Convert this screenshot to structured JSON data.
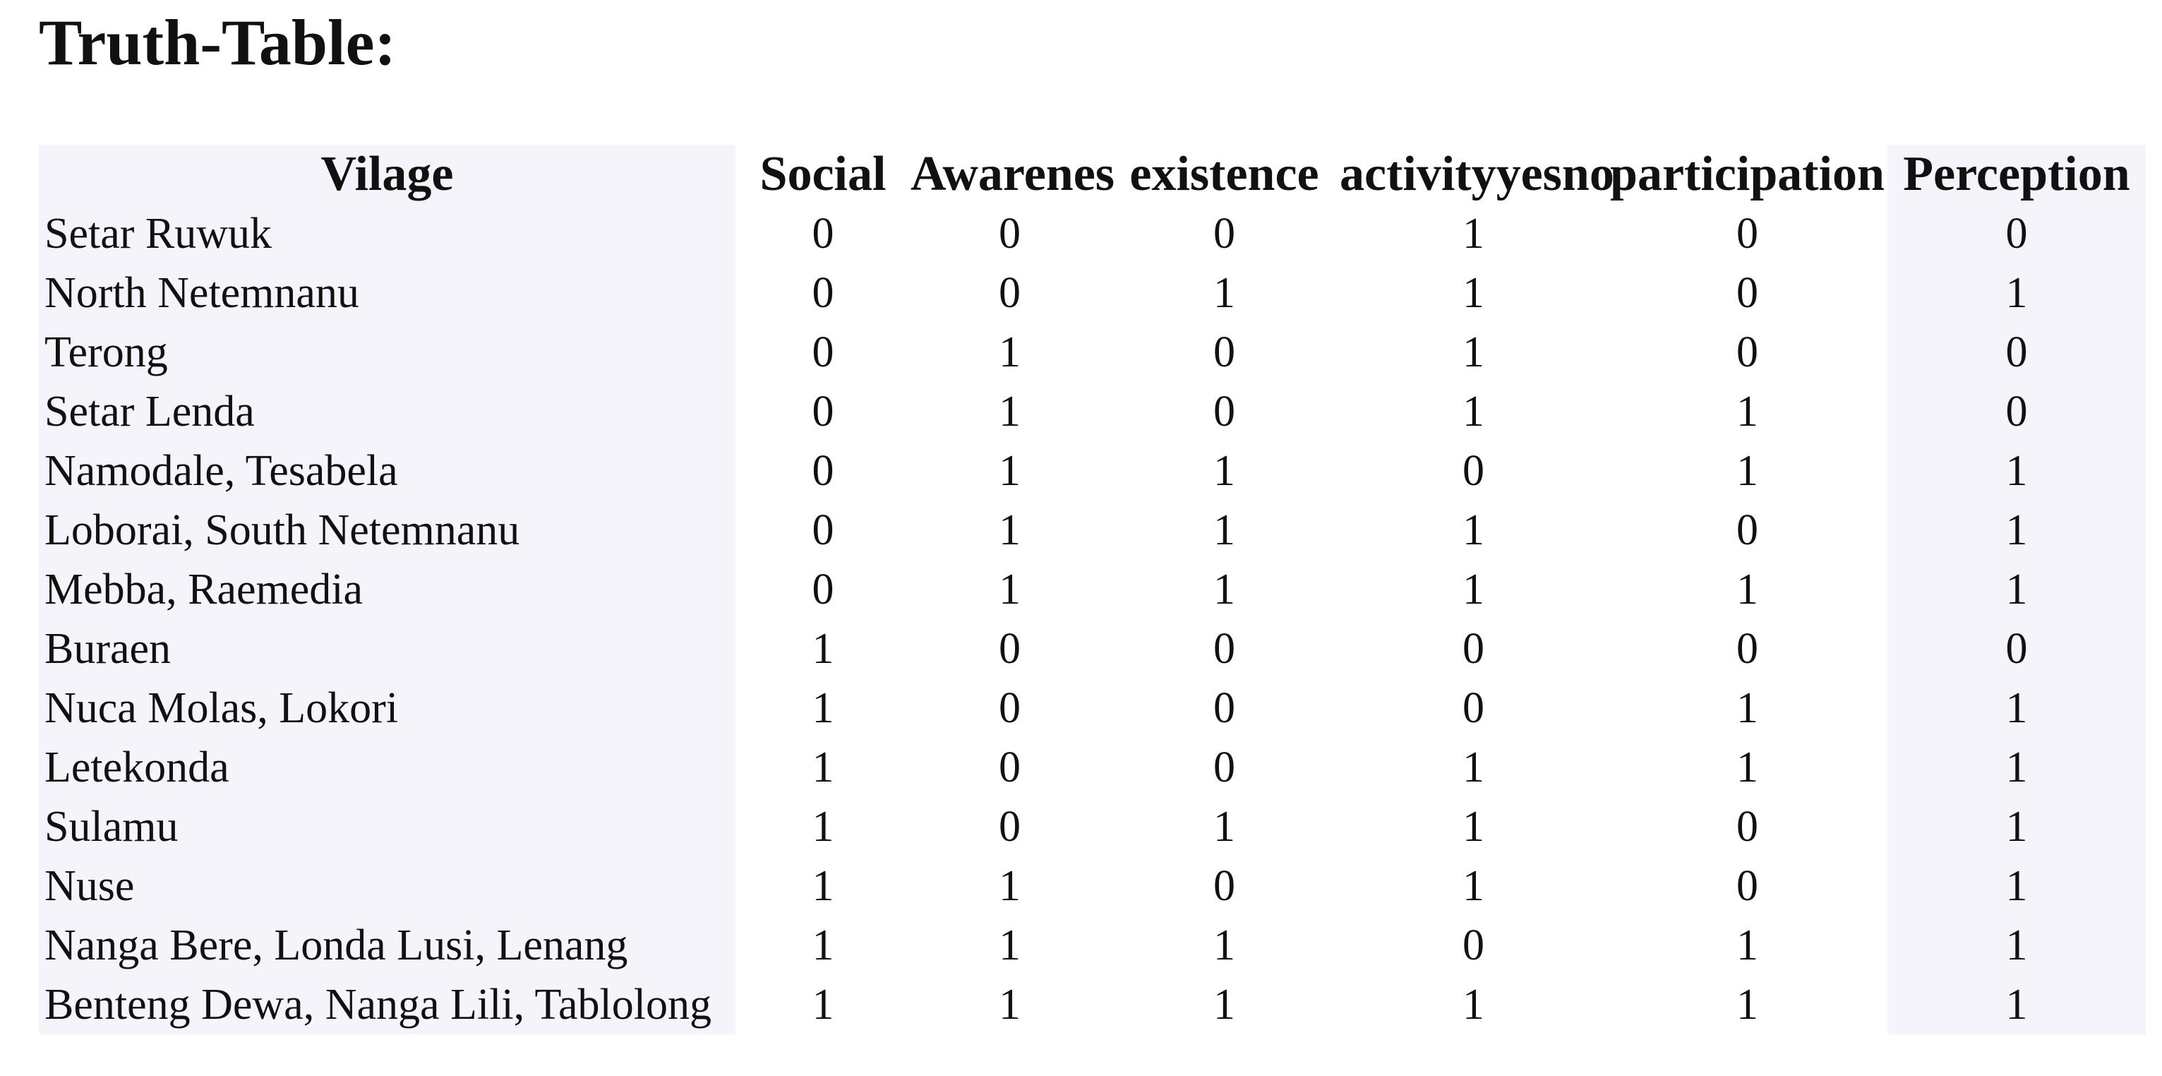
{
  "page": {
    "title": "Truth-Table:"
  },
  "colors": {
    "page_background": "#ffffff",
    "text": "#111111",
    "shaded_column_bg": "#f5f4fa"
  },
  "table": {
    "headers": [
      "Vilage",
      "Social",
      "Awarenes",
      "existence",
      "activityyesno",
      "participation",
      "Perception"
    ],
    "rows": [
      {
        "village": "Setar Ruwuk",
        "values": [
          "0",
          "0",
          "0",
          "1",
          "0",
          "0"
        ]
      },
      {
        "village": "North Netemnanu",
        "values": [
          "0",
          "0",
          "1",
          "1",
          "0",
          "1"
        ]
      },
      {
        "village": "Terong",
        "values": [
          "0",
          "1",
          "0",
          "1",
          "0",
          "0"
        ]
      },
      {
        "village": "Setar Lenda",
        "values": [
          "0",
          "1",
          "0",
          "1",
          "1",
          "0"
        ]
      },
      {
        "village": "Namodale, Tesabela",
        "values": [
          "0",
          "1",
          "1",
          "0",
          "1",
          "1"
        ]
      },
      {
        "village": "Loborai, South Netemnanu",
        "values": [
          "0",
          "1",
          "1",
          "1",
          "0",
          "1"
        ]
      },
      {
        "village": "Mebba, Raemedia",
        "values": [
          "0",
          "1",
          "1",
          "1",
          "1",
          "1"
        ]
      },
      {
        "village": "Buraen",
        "values": [
          "1",
          "0",
          "0",
          "0",
          "0",
          "0"
        ]
      },
      {
        "village": "Nuca Molas, Lokori",
        "values": [
          "1",
          "0",
          "0",
          "0",
          "1",
          "1"
        ]
      },
      {
        "village": "Letekonda",
        "values": [
          "1",
          "0",
          "0",
          "1",
          "1",
          "1"
        ]
      },
      {
        "village": "Sulamu",
        "values": [
          "1",
          "0",
          "1",
          "1",
          "0",
          "1"
        ]
      },
      {
        "village": "Nuse",
        "values": [
          "1",
          "1",
          "0",
          "1",
          "0",
          "1"
        ]
      },
      {
        "village": "Nanga Bere, Londa Lusi, Lenang",
        "values": [
          "1",
          "1",
          "1",
          "0",
          "1",
          "1"
        ]
      },
      {
        "village": "Benteng Dewa, Nanga Lili, Tablolong",
        "values": [
          "1",
          "1",
          "1",
          "1",
          "1",
          "1"
        ]
      }
    ]
  },
  "chart_data": {
    "type": "table",
    "title": "Truth-Table:",
    "columns": [
      "Vilage",
      "Social",
      "Awarenes",
      "existence",
      "activityyesno",
      "participation",
      "Perception"
    ],
    "rows": [
      [
        "Setar Ruwuk",
        0,
        0,
        0,
        1,
        0,
        0
      ],
      [
        "North Netemnanu",
        0,
        0,
        1,
        1,
        0,
        1
      ],
      [
        "Terong",
        0,
        1,
        0,
        1,
        0,
        0
      ],
      [
        "Setar Lenda",
        0,
        1,
        0,
        1,
        1,
        0
      ],
      [
        "Namodale, Tesabela",
        0,
        1,
        1,
        0,
        1,
        1
      ],
      [
        "Loborai, South Netemnanu",
        0,
        1,
        1,
        1,
        0,
        1
      ],
      [
        "Mebba, Raemedia",
        0,
        1,
        1,
        1,
        1,
        1
      ],
      [
        "Buraen",
        1,
        0,
        0,
        0,
        0,
        0
      ],
      [
        "Nuca Molas, Lokori",
        1,
        0,
        0,
        0,
        1,
        1
      ],
      [
        "Letekonda",
        1,
        0,
        0,
        1,
        1,
        1
      ],
      [
        "Sulamu",
        1,
        0,
        1,
        1,
        0,
        1
      ],
      [
        "Nuse",
        1,
        1,
        0,
        1,
        0,
        1
      ],
      [
        "Nanga Bere, Londa Lusi, Lenang",
        1,
        1,
        1,
        0,
        1,
        1
      ],
      [
        "Benteng Dewa, Nanga Lili, Tablolong",
        1,
        1,
        1,
        1,
        1,
        1
      ]
    ]
  }
}
